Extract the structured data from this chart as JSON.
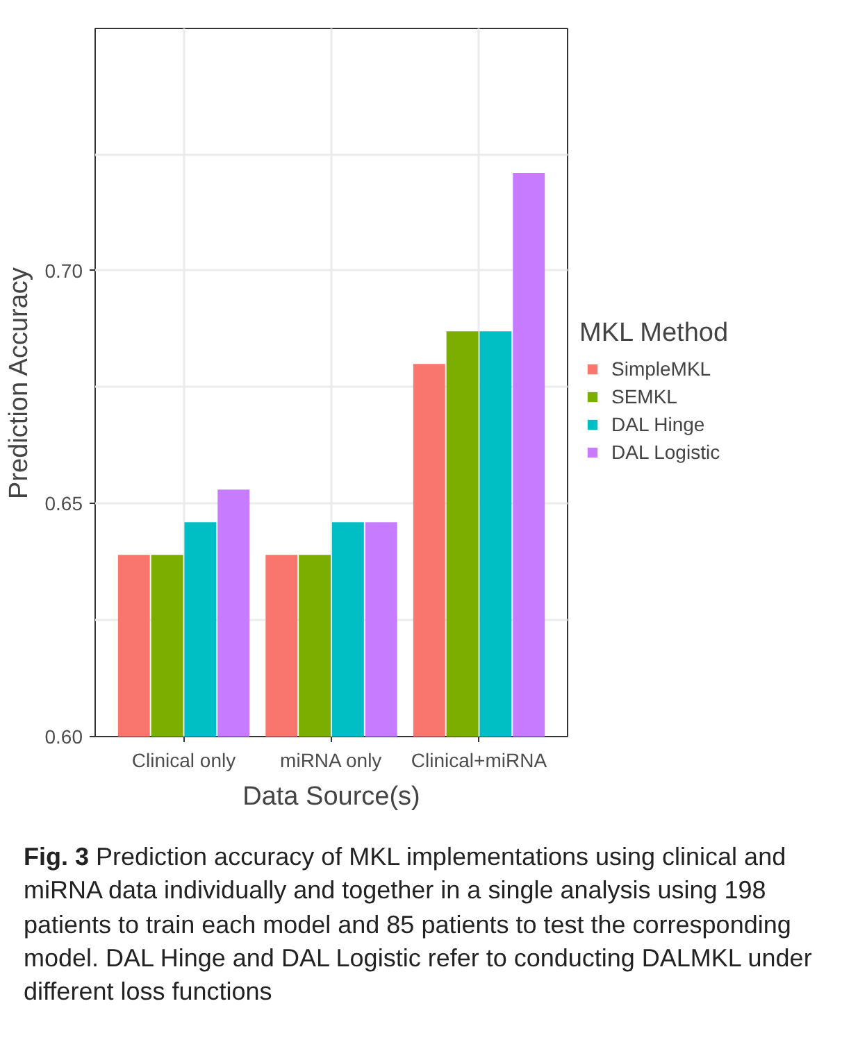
{
  "chart_data": {
    "type": "bar",
    "xlabel": "Data Source(s)",
    "ylabel": "Prediction Accuracy",
    "legend_title": "MKL Method",
    "categories": [
      "Clinical only",
      "miRNA only",
      "Clinical+miRNA"
    ],
    "series": [
      {
        "name": "SimpleMKL",
        "color": "#f8766d",
        "values": [
          0.639,
          0.639,
          0.68
        ]
      },
      {
        "name": "SEMKL",
        "color": "#7cae00",
        "values": [
          0.639,
          0.639,
          0.687
        ]
      },
      {
        "name": "DAL Hinge",
        "color": "#00bfc4",
        "values": [
          0.646,
          0.646,
          0.687
        ]
      },
      {
        "name": "DAL Logistic",
        "color": "#c77cff",
        "values": [
          0.653,
          0.646,
          0.721
        ]
      }
    ],
    "ylim": [
      0.6,
      0.752
    ],
    "yticks": [
      {
        "value": 0.6,
        "label": "0.60"
      },
      {
        "value": 0.625,
        "label": null
      },
      {
        "value": 0.65,
        "label": "0.65"
      },
      {
        "value": 0.675,
        "label": null
      },
      {
        "value": 0.7,
        "label": "0.70"
      },
      {
        "value": 0.725,
        "label": null
      }
    ],
    "grid": true,
    "legend": "right",
    "annotations": [
      "Fig. 3",
      "Prediction accuracy of MKL implementations using clinical and miRNA data individually and together in a single analysis using 198 patients to train each model and 85 patients to test the corresponding model. DAL Hinge and DAL Logistic refer to conducting DALMKL under different loss functions"
    ]
  }
}
